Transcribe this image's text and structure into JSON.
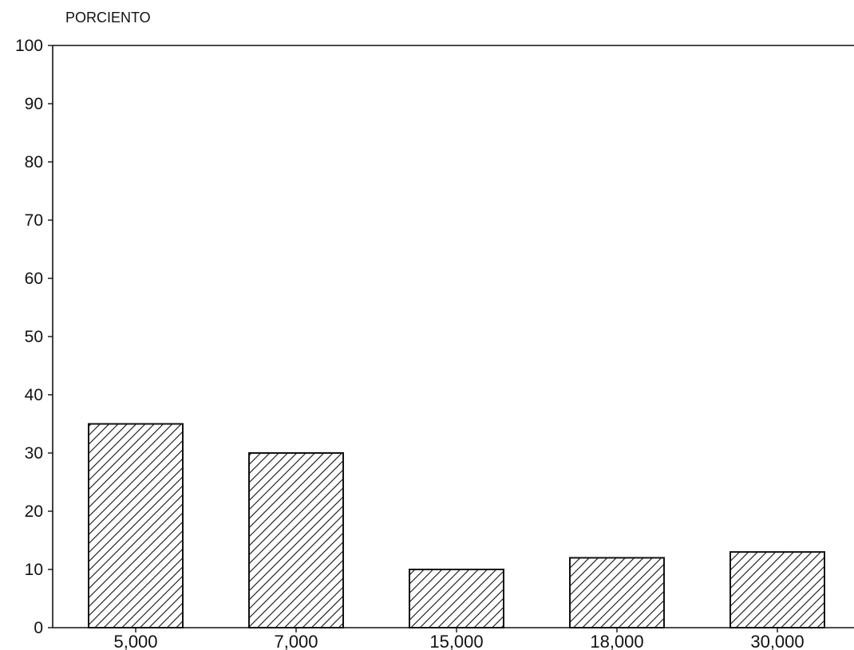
{
  "chart_data": {
    "type": "bar",
    "title": "",
    "xlabel": "",
    "ylabel": "PORCIENTO",
    "categories": [
      "5,000",
      "7,000",
      "15,000",
      "18,000",
      "30,000"
    ],
    "values": [
      35,
      30,
      10,
      12,
      13
    ],
    "ylim": [
      0,
      100
    ],
    "yticks": [
      "0",
      "10",
      "20",
      "30",
      "40",
      "50",
      "60",
      "70",
      "80",
      "90",
      "100"
    ],
    "grid": false,
    "legend": "none",
    "bar_fill": "diagonal hatch",
    "colors": {
      "ink": "#111111",
      "background": "#ffffff"
    }
  }
}
